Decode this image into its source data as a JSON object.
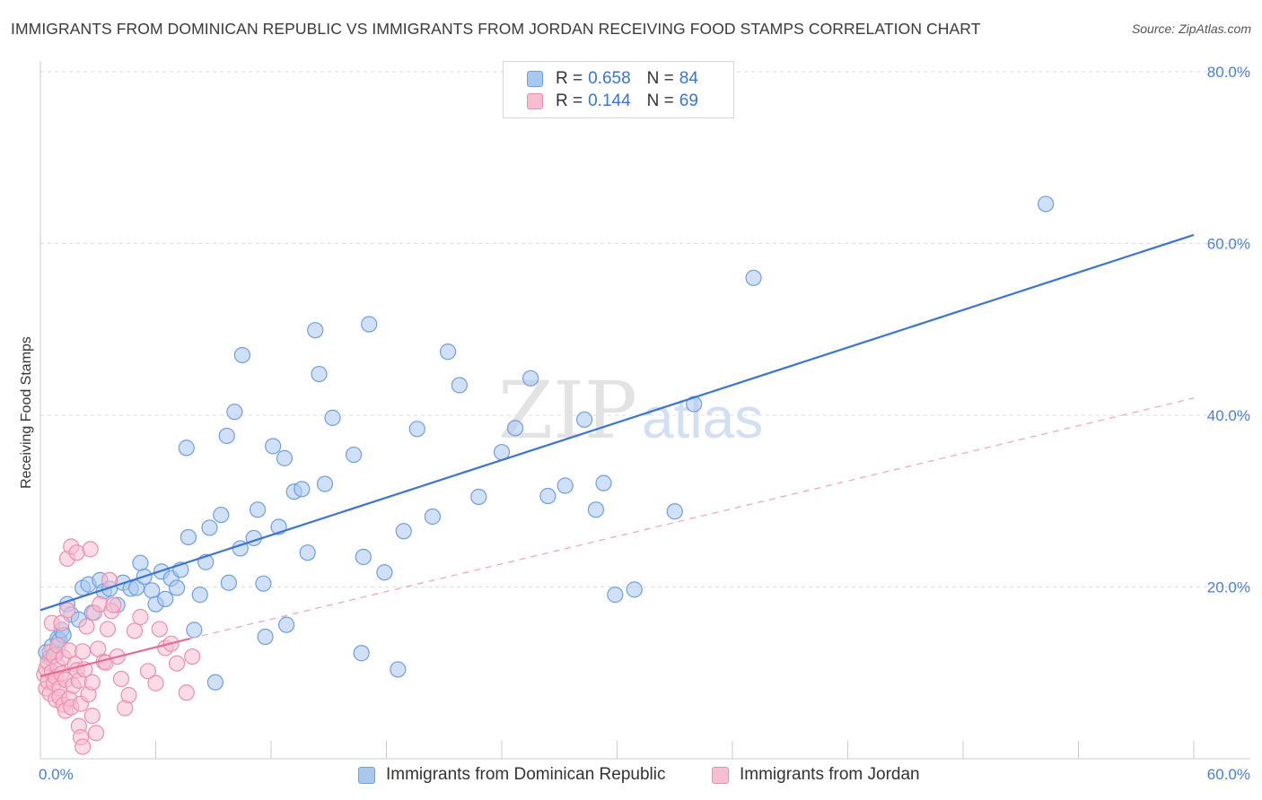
{
  "title": "IMMIGRANTS FROM DOMINICAN REPUBLIC VS IMMIGRANTS FROM JORDAN RECEIVING FOOD STAMPS CORRELATION CHART",
  "source": "Source: ZipAtlas.com",
  "watermark": {
    "zip": "ZIP",
    "atlas": "atlas"
  },
  "legend": {
    "rows": [
      {
        "r_label": "R =",
        "r_value": "0.658",
        "n_label": "N =",
        "n_value": "84",
        "color": "#a9c8f0",
        "border": "#6f9fe0"
      },
      {
        "r_label": "R =",
        "r_value": "0.144",
        "n_label": "N =",
        "n_value": "69",
        "color": "#f7bdd0",
        "border": "#ec8fae"
      }
    ]
  },
  "chart_data": {
    "type": "scatter",
    "title": "IMMIGRANTS FROM DOMINICAN REPUBLIC VS IMMIGRANTS FROM JORDAN RECEIVING FOOD STAMPS CORRELATION CHART",
    "xlabel": "",
    "ylabel": "Receiving Food Stamps",
    "xlim": [
      0,
      60
    ],
    "ylim": [
      0,
      80
    ],
    "x_tick_labels": [
      "0.0%",
      "60.0%"
    ],
    "y_ticks": [
      20,
      40,
      60,
      80
    ],
    "y_tick_labels": [
      "20.0%",
      "40.0%",
      "60.0%",
      "80.0%"
    ],
    "grid": "horizontal dashed",
    "legend_position": "top-center and bottom",
    "series": [
      {
        "name": "Immigrants from Dominican Republic",
        "color": "#6f9fe0",
        "fill": "#a9c8f0",
        "trend": {
          "x": [
            0,
            60
          ],
          "y": [
            17.3,
            61.0
          ],
          "style": "solid",
          "color": "#3a75d0"
        },
        "points": [
          [
            0.3,
            12.4
          ],
          [
            0.5,
            11.8
          ],
          [
            0.6,
            13.1
          ],
          [
            0.8,
            12.2
          ],
          [
            0.9,
            14.0
          ],
          [
            1.0,
            13.8
          ],
          [
            1.1,
            15.0
          ],
          [
            1.2,
            14.4
          ],
          [
            1.4,
            18.0
          ],
          [
            1.6,
            16.8
          ],
          [
            2.0,
            16.2
          ],
          [
            2.2,
            19.9
          ],
          [
            2.5,
            20.3
          ],
          [
            2.7,
            17.0
          ],
          [
            3.1,
            20.8
          ],
          [
            3.3,
            19.5
          ],
          [
            3.6,
            19.8
          ],
          [
            4.0,
            17.9
          ],
          [
            4.3,
            20.5
          ],
          [
            4.7,
            19.8
          ],
          [
            5.0,
            19.9
          ],
          [
            5.2,
            22.8
          ],
          [
            5.4,
            21.2
          ],
          [
            5.8,
            19.6
          ],
          [
            6.0,
            18.0
          ],
          [
            6.3,
            21.8
          ],
          [
            6.5,
            18.6
          ],
          [
            6.8,
            21.0
          ],
          [
            7.1,
            19.9
          ],
          [
            7.3,
            22.0
          ],
          [
            7.6,
            36.2
          ],
          [
            7.7,
            25.8
          ],
          [
            8.0,
            15.0
          ],
          [
            8.3,
            19.1
          ],
          [
            8.6,
            22.9
          ],
          [
            8.8,
            26.9
          ],
          [
            9.1,
            8.9
          ],
          [
            9.4,
            28.4
          ],
          [
            9.7,
            37.6
          ],
          [
            9.8,
            20.5
          ],
          [
            10.1,
            40.4
          ],
          [
            10.4,
            24.5
          ],
          [
            10.5,
            47.0
          ],
          [
            11.1,
            25.7
          ],
          [
            11.3,
            29.0
          ],
          [
            11.6,
            20.4
          ],
          [
            11.7,
            14.2
          ],
          [
            12.1,
            36.4
          ],
          [
            12.4,
            27.0
          ],
          [
            12.7,
            35.0
          ],
          [
            12.8,
            15.6
          ],
          [
            13.2,
            31.1
          ],
          [
            13.6,
            31.4
          ],
          [
            13.9,
            24.0
          ],
          [
            14.3,
            49.9
          ],
          [
            14.5,
            44.8
          ],
          [
            14.8,
            32.0
          ],
          [
            15.2,
            39.7
          ],
          [
            16.3,
            35.4
          ],
          [
            16.7,
            12.3
          ],
          [
            16.8,
            23.5
          ],
          [
            17.1,
            50.6
          ],
          [
            17.9,
            21.7
          ],
          [
            18.6,
            10.4
          ],
          [
            18.9,
            26.5
          ],
          [
            19.6,
            38.4
          ],
          [
            20.4,
            28.2
          ],
          [
            21.2,
            47.4
          ],
          [
            21.8,
            43.5
          ],
          [
            22.8,
            30.5
          ],
          [
            24.0,
            35.7
          ],
          [
            24.7,
            38.5
          ],
          [
            25.5,
            44.3
          ],
          [
            26.4,
            30.6
          ],
          [
            27.3,
            31.8
          ],
          [
            28.3,
            39.5
          ],
          [
            28.9,
            29.0
          ],
          [
            29.3,
            32.1
          ],
          [
            29.9,
            19.1
          ],
          [
            30.9,
            19.7
          ],
          [
            33.0,
            28.8
          ],
          [
            34.0,
            41.3
          ],
          [
            37.1,
            56.0
          ],
          [
            52.3,
            64.6
          ]
        ]
      },
      {
        "name": "Immigrants from Jordan",
        "color": "#ec8fae",
        "fill": "#f7bdd0",
        "trend": {
          "x": [
            0,
            7.8
          ],
          "y": [
            9.6,
            14.0
          ],
          "style": "solid",
          "color": "#e86a95"
        },
        "trend_ext": {
          "x": [
            7.8,
            60
          ],
          "y": [
            14.0,
            42.0
          ],
          "style": "dashed",
          "color": "#f1a8c1"
        },
        "points": [
          [
            0.2,
            9.8
          ],
          [
            0.3,
            10.5
          ],
          [
            0.3,
            8.2
          ],
          [
            0.4,
            11.2
          ],
          [
            0.4,
            9.0
          ],
          [
            0.5,
            12.4
          ],
          [
            0.5,
            7.6
          ],
          [
            0.6,
            10.1
          ],
          [
            0.6,
            15.8
          ],
          [
            0.7,
            8.8
          ],
          [
            0.7,
            12.0
          ],
          [
            0.8,
            9.5
          ],
          [
            0.8,
            6.9
          ],
          [
            0.9,
            10.8
          ],
          [
            0.9,
            13.2
          ],
          [
            1.0,
            8.2
          ],
          [
            1.0,
            7.2
          ],
          [
            1.1,
            9.9
          ],
          [
            1.1,
            15.8
          ],
          [
            1.2,
            6.3
          ],
          [
            1.2,
            11.8
          ],
          [
            1.3,
            5.6
          ],
          [
            1.3,
            9.2
          ],
          [
            1.4,
            17.3
          ],
          [
            1.4,
            23.3
          ],
          [
            1.5,
            7.0
          ],
          [
            1.5,
            12.6
          ],
          [
            1.6,
            6.0
          ],
          [
            1.6,
            24.7
          ],
          [
            1.7,
            8.5
          ],
          [
            1.8,
            11.0
          ],
          [
            1.9,
            10.3
          ],
          [
            1.9,
            24.0
          ],
          [
            2.0,
            3.8
          ],
          [
            2.0,
            9.1
          ],
          [
            2.1,
            2.5
          ],
          [
            2.1,
            6.4
          ],
          [
            2.2,
            1.4
          ],
          [
            2.2,
            12.5
          ],
          [
            2.3,
            10.4
          ],
          [
            2.4,
            15.4
          ],
          [
            2.5,
            7.5
          ],
          [
            2.6,
            24.4
          ],
          [
            2.7,
            5.0
          ],
          [
            2.7,
            8.9
          ],
          [
            2.8,
            17.0
          ],
          [
            2.9,
            3.0
          ],
          [
            3.0,
            12.8
          ],
          [
            3.1,
            18.0
          ],
          [
            3.3,
            11.3
          ],
          [
            3.4,
            11.2
          ],
          [
            3.5,
            15.1
          ],
          [
            3.6,
            20.8
          ],
          [
            3.7,
            17.2
          ],
          [
            3.8,
            17.9
          ],
          [
            4.0,
            11.9
          ],
          [
            4.2,
            9.3
          ],
          [
            4.4,
            5.9
          ],
          [
            4.6,
            7.4
          ],
          [
            4.9,
            14.9
          ],
          [
            5.2,
            16.5
          ],
          [
            5.6,
            10.2
          ],
          [
            6.0,
            8.8
          ],
          [
            6.2,
            15.1
          ],
          [
            6.5,
            12.9
          ],
          [
            6.8,
            13.4
          ],
          [
            7.1,
            11.1
          ],
          [
            7.6,
            7.7
          ],
          [
            7.9,
            11.9
          ]
        ]
      }
    ]
  },
  "bottom_legend": [
    {
      "label": "Immigrants from Dominican Republic",
      "color": "#a9c8f0",
      "border": "#6f9fe0"
    },
    {
      "label": "Immigrants from Jordan",
      "color": "#f7bdd0",
      "border": "#ec8fae"
    }
  ]
}
